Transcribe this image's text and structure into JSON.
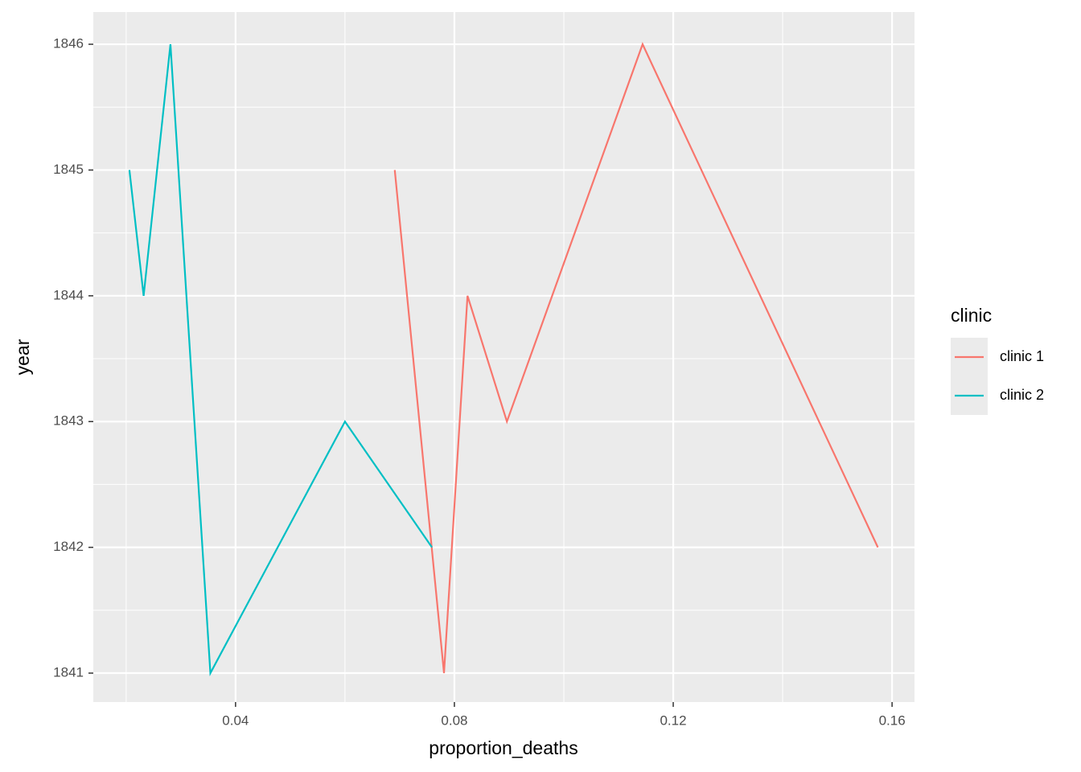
{
  "chart_data": {
    "type": "line",
    "x_label": "proportion_deaths",
    "y_label": "year",
    "legend_title": "clinic",
    "legend_position": "right",
    "grid": true,
    "xlim": [
      0.014,
      0.1641
    ],
    "xticks": [
      0.04,
      0.08,
      0.12,
      0.16
    ],
    "ylim": [
      1840.77,
      1846.256
    ],
    "yticks": [
      1841,
      1842,
      1843,
      1844,
      1845,
      1846
    ],
    "series": [
      {
        "name": "clinic 1",
        "color": "#F8766D",
        "x": [
          0.0691,
          0.0781,
          0.0824,
          0.0896,
          0.1144,
          0.1574
        ],
        "values": [
          1845,
          1841,
          1844,
          1843,
          1846,
          1842
        ]
      },
      {
        "name": "clinic 2",
        "color": "#00BFC4",
        "x": [
          0.0206,
          0.0232,
          0.0281,
          0.0354,
          0.06,
          0.0759
        ],
        "values": [
          1845,
          1844,
          1846,
          1841,
          1843,
          1842
        ]
      }
    ]
  }
}
